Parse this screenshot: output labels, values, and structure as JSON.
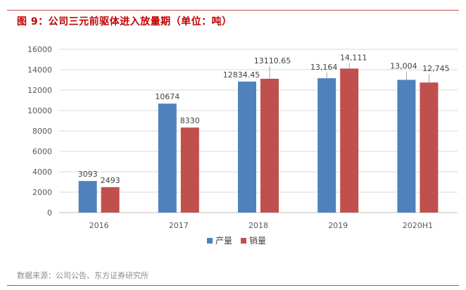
{
  "title": "图 9：公司三元前驱体进入放量期（单位：吨）",
  "source": "数据来源：公司公告、东方证券研究所",
  "colors": {
    "accent": "#c00000",
    "rule": "#c0504d",
    "series_production": "#4f81bd",
    "series_sales": "#c0504d",
    "grid": "#d9d9d9",
    "axis": "#bfbfbf"
  },
  "chart_data": {
    "type": "bar",
    "title": "",
    "xlabel": "",
    "ylabel": "",
    "categories": [
      "2016",
      "2017",
      "2018",
      "2019",
      "2020H1"
    ],
    "series": [
      {
        "name": "产量",
        "values": [
          3093,
          10674,
          12834.45,
          13164,
          13004
        ],
        "labels": [
          "3093",
          "10674",
          "12834.45",
          "13,164",
          "13,004"
        ]
      },
      {
        "name": "销量",
        "values": [
          2493,
          8330,
          13110.65,
          14111,
          12745
        ],
        "labels": [
          "2493",
          "8330",
          "13110.65",
          "14,111",
          "12,745"
        ]
      }
    ],
    "ylim": [
      0,
      16000
    ],
    "yticks": [
      "0",
      "2000",
      "4000",
      "6000",
      "8000",
      "10000",
      "12000",
      "14000",
      "16000"
    ],
    "grid": true,
    "legend_position": "bottom"
  }
}
